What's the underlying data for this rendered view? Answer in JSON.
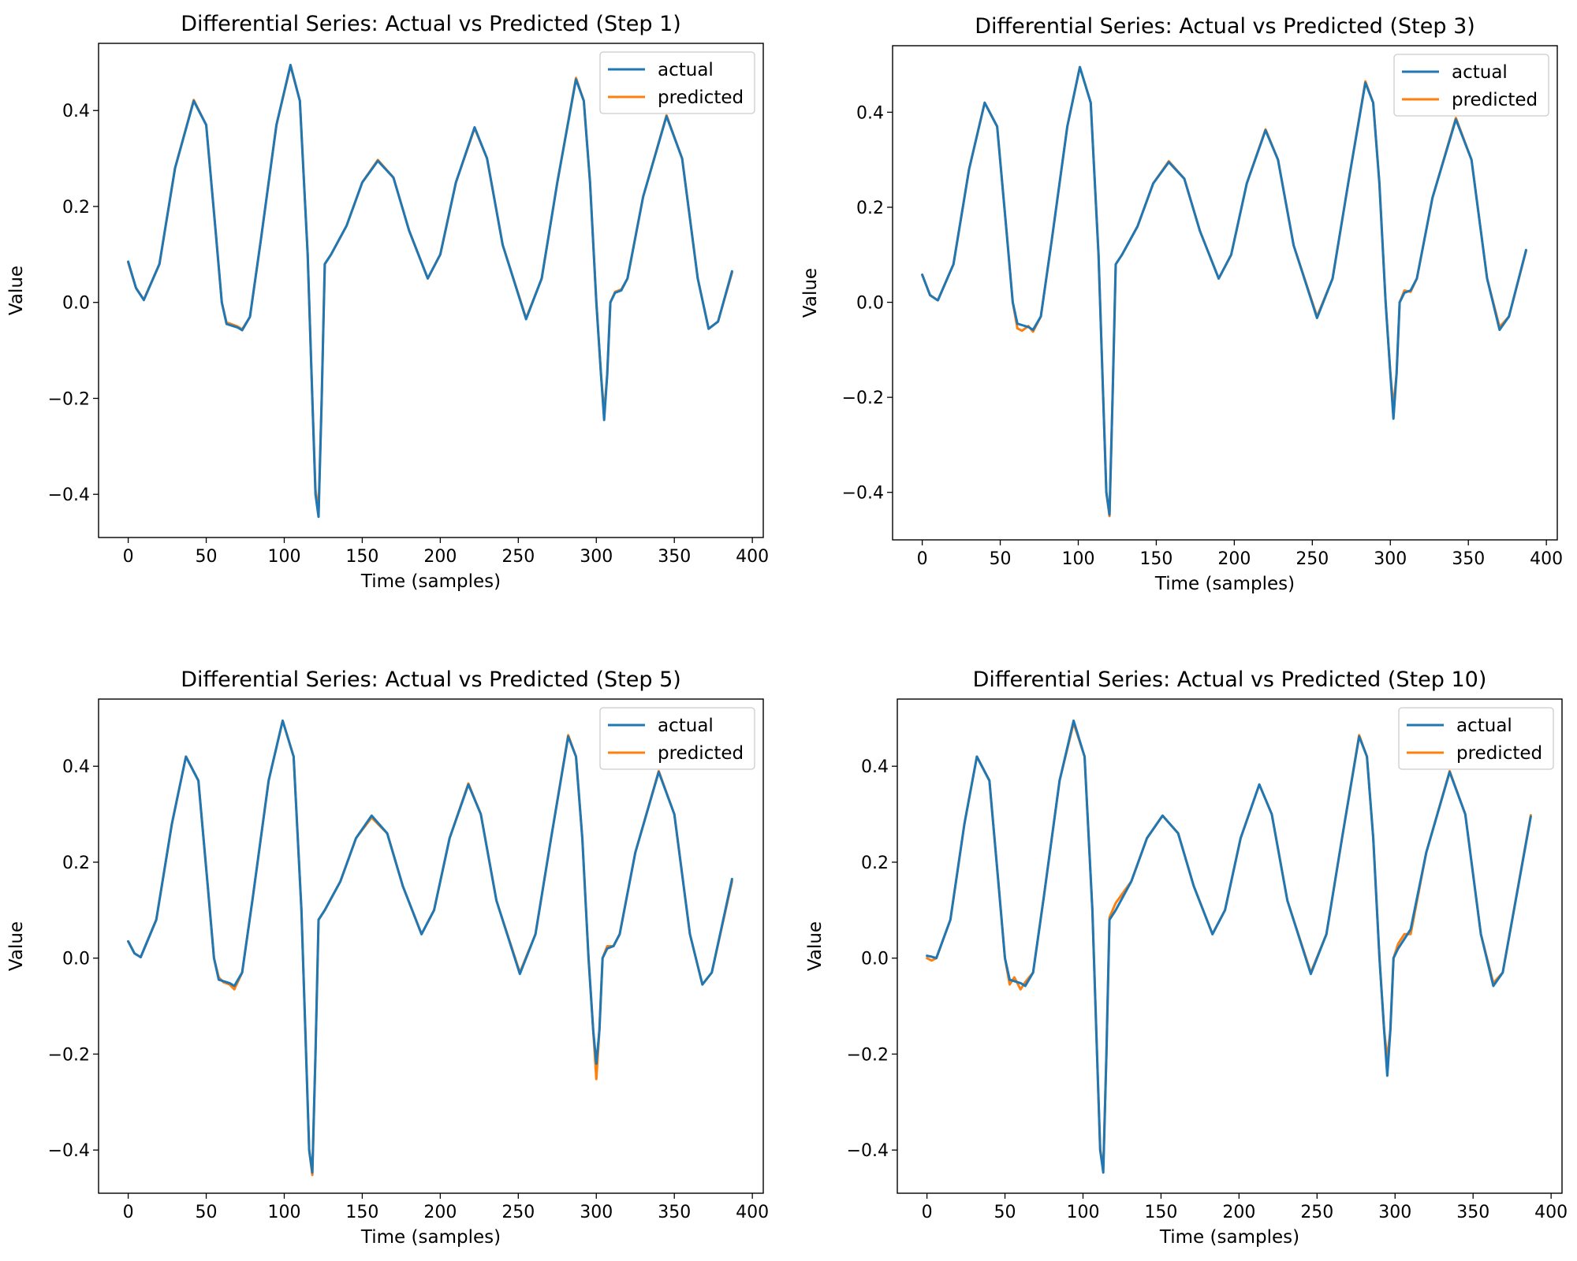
{
  "chart_data": [
    {
      "type": "line",
      "title": "Differential Series: Actual vs Predicted (Step 1)",
      "xlabel": "Time (samples)",
      "ylabel": "Value",
      "xlim": [
        -19,
        407
      ],
      "ylim": [
        -0.49,
        0.54
      ],
      "xticks": [
        0,
        50,
        100,
        150,
        200,
        250,
        300,
        350,
        400
      ],
      "yticks": [
        -0.4,
        -0.2,
        0.0,
        0.2,
        0.4
      ],
      "ytick_labels": [
        "−0.4",
        "−0.2",
        "0.0",
        "0.2",
        "0.4"
      ],
      "legend": "upper right",
      "series": [
        {
          "name": "actual",
          "color": "#1f77b4",
          "x": [
            0,
            5,
            10,
            20,
            30,
            42,
            50,
            56,
            60,
            63,
            66,
            70,
            73,
            78,
            85,
            95,
            104,
            110,
            115,
            118,
            120,
            122,
            124,
            126,
            130,
            140,
            150,
            160,
            170,
            180,
            192,
            200,
            210,
            222,
            230,
            240,
            255,
            265,
            275,
            287,
            292,
            296,
            300,
            303,
            305,
            307,
            309,
            312,
            316,
            320,
            330,
            345,
            355,
            365,
            372,
            378,
            387
          ],
          "y": [
            0.085,
            0.03,
            0.005,
            0.08,
            0.28,
            0.42,
            0.37,
            0.15,
            0.0,
            -0.045,
            -0.048,
            -0.052,
            -0.058,
            -0.03,
            0.13,
            0.37,
            0.495,
            0.42,
            0.1,
            -0.2,
            -0.4,
            -0.447,
            -0.2,
            0.08,
            0.1,
            0.16,
            0.25,
            0.295,
            0.26,
            0.15,
            0.05,
            0.1,
            0.25,
            0.365,
            0.3,
            0.12,
            -0.035,
            0.05,
            0.25,
            0.465,
            0.42,
            0.25,
            0.0,
            -0.15,
            -0.245,
            -0.15,
            0.0,
            0.02,
            0.025,
            0.05,
            0.22,
            0.388,
            0.3,
            0.05,
            -0.055,
            -0.04,
            0.065
          ]
        },
        {
          "name": "predicted",
          "color": "#ff7f0e",
          "x": [
            0,
            5,
            10,
            20,
            30,
            42,
            50,
            56,
            60,
            63,
            66,
            70,
            73,
            78,
            85,
            95,
            104,
            110,
            115,
            118,
            120,
            122,
            124,
            126,
            130,
            140,
            150,
            160,
            170,
            180,
            192,
            200,
            210,
            222,
            230,
            240,
            255,
            265,
            275,
            287,
            292,
            296,
            300,
            303,
            305,
            307,
            309,
            312,
            316,
            320,
            330,
            345,
            355,
            365,
            372,
            378,
            387
          ],
          "y": [
            0.083,
            0.03,
            0.006,
            0.08,
            0.28,
            0.422,
            0.37,
            0.15,
            0.0,
            -0.042,
            -0.045,
            -0.05,
            -0.056,
            -0.03,
            0.13,
            0.37,
            0.493,
            0.42,
            0.1,
            -0.2,
            -0.39,
            -0.435,
            -0.2,
            0.08,
            0.1,
            0.16,
            0.25,
            0.297,
            0.26,
            0.15,
            0.05,
            0.1,
            0.25,
            0.363,
            0.3,
            0.12,
            -0.033,
            0.05,
            0.25,
            0.468,
            0.42,
            0.25,
            0.0,
            -0.15,
            -0.23,
            -0.15,
            0.0,
            0.022,
            0.027,
            0.05,
            0.22,
            0.39,
            0.3,
            0.05,
            -0.055,
            -0.04,
            0.062
          ]
        }
      ]
    },
    {
      "type": "line",
      "title": "Differential Series: Actual vs Predicted (Step 3)",
      "xlabel": "Time (samples)",
      "ylabel": "Value",
      "xlim": [
        -19,
        407
      ],
      "ylim": [
        -0.5,
        0.54
      ],
      "xticks": [
        0,
        50,
        100,
        150,
        200,
        250,
        300,
        350,
        400
      ],
      "yticks": [
        -0.4,
        -0.2,
        0.0,
        0.2,
        0.4
      ],
      "ytick_labels": [
        "−0.4",
        "−0.2",
        "0.0",
        "0.2",
        "0.4"
      ],
      "legend": "upper right",
      "series": [
        {
          "name": "actual",
          "color": "#1f77b4",
          "x": [
            0,
            5,
            10,
            20,
            30,
            40,
            48,
            54,
            58,
            61,
            64,
            68,
            71,
            76,
            83,
            93,
            101,
            108,
            113,
            116,
            118,
            120,
            122,
            124,
            128,
            138,
            148,
            158,
            168,
            178,
            190,
            198,
            208,
            220,
            228,
            238,
            253,
            263,
            273,
            284,
            289,
            293,
            297,
            300,
            302,
            304,
            306,
            309,
            313,
            317,
            327,
            342,
            352,
            362,
            370,
            376,
            387
          ],
          "y": [
            0.058,
            0.015,
            0.004,
            0.08,
            0.28,
            0.42,
            0.37,
            0.15,
            0.0,
            -0.045,
            -0.048,
            -0.052,
            -0.058,
            -0.03,
            0.13,
            0.37,
            0.495,
            0.42,
            0.1,
            -0.2,
            -0.4,
            -0.447,
            -0.2,
            0.08,
            0.1,
            0.16,
            0.25,
            0.295,
            0.26,
            0.15,
            0.05,
            0.1,
            0.25,
            0.362,
            0.3,
            0.12,
            -0.033,
            0.05,
            0.25,
            0.462,
            0.42,
            0.25,
            0.0,
            -0.15,
            -0.245,
            -0.15,
            0.0,
            0.02,
            0.025,
            0.05,
            0.22,
            0.385,
            0.3,
            0.05,
            -0.058,
            -0.03,
            0.11
          ]
        },
        {
          "name": "predicted",
          "color": "#ff7f0e",
          "x": [
            0,
            5,
            10,
            20,
            30,
            40,
            48,
            54,
            58,
            61,
            64,
            68,
            71,
            76,
            83,
            93,
            101,
            108,
            113,
            116,
            118,
            120,
            122,
            124,
            128,
            138,
            148,
            158,
            168,
            178,
            190,
            198,
            208,
            220,
            228,
            238,
            253,
            263,
            273,
            284,
            289,
            293,
            297,
            300,
            302,
            304,
            306,
            309,
            313,
            317,
            327,
            342,
            352,
            362,
            370,
            376,
            387
          ],
          "y": [
            0.058,
            0.015,
            0.004,
            0.08,
            0.28,
            0.42,
            0.37,
            0.15,
            0.0,
            -0.055,
            -0.06,
            -0.05,
            -0.062,
            -0.03,
            0.13,
            0.37,
            0.495,
            0.42,
            0.1,
            -0.2,
            -0.4,
            -0.45,
            -0.2,
            0.08,
            0.1,
            0.16,
            0.25,
            0.297,
            0.26,
            0.15,
            0.05,
            0.1,
            0.25,
            0.364,
            0.3,
            0.12,
            -0.03,
            0.05,
            0.25,
            0.465,
            0.42,
            0.25,
            0.0,
            -0.15,
            -0.22,
            -0.15,
            0.0,
            0.025,
            0.022,
            0.05,
            0.22,
            0.388,
            0.3,
            0.05,
            -0.052,
            -0.03,
            0.108
          ]
        }
      ]
    },
    {
      "type": "line",
      "title": "Differential Series: Actual vs Predicted (Step 5)",
      "xlabel": "Time (samples)",
      "ylabel": "Value",
      "xlim": [
        -19,
        407
      ],
      "ylim": [
        -0.49,
        0.54
      ],
      "xticks": [
        0,
        50,
        100,
        150,
        200,
        250,
        300,
        350,
        400
      ],
      "yticks": [
        -0.4,
        -0.2,
        0.0,
        0.2,
        0.4
      ],
      "ytick_labels": [
        "−0.4",
        "−0.2",
        "0.0",
        "0.2",
        "0.4"
      ],
      "legend": "upper right",
      "series": [
        {
          "name": "actual",
          "color": "#1f77b4",
          "x": [
            0,
            4,
            8,
            18,
            28,
            37,
            45,
            51,
            55,
            58,
            61,
            65,
            68,
            73,
            80,
            90,
            99,
            106,
            111,
            114,
            116,
            118,
            120,
            122,
            126,
            136,
            146,
            156,
            166,
            176,
            188,
            196,
            206,
            218,
            226,
            236,
            251,
            261,
            271,
            282,
            287,
            291,
            295,
            298,
            300,
            302,
            304,
            307,
            311,
            315,
            325,
            340,
            350,
            360,
            368,
            374,
            387
          ],
          "y": [
            0.035,
            0.01,
            0.002,
            0.08,
            0.28,
            0.42,
            0.37,
            0.15,
            0.0,
            -0.045,
            -0.048,
            -0.052,
            -0.058,
            -0.03,
            0.13,
            0.37,
            0.495,
            0.42,
            0.1,
            -0.2,
            -0.4,
            -0.447,
            -0.2,
            0.08,
            0.1,
            0.16,
            0.25,
            0.297,
            0.26,
            0.15,
            0.05,
            0.1,
            0.25,
            0.362,
            0.3,
            0.12,
            -0.033,
            0.05,
            0.25,
            0.462,
            0.42,
            0.25,
            0.0,
            -0.15,
            -0.22,
            -0.15,
            0.0,
            0.02,
            0.025,
            0.05,
            0.22,
            0.388,
            0.3,
            0.05,
            -0.055,
            -0.03,
            0.165
          ]
        },
        {
          "name": "predicted",
          "color": "#ff7f0e",
          "x": [
            0,
            4,
            8,
            18,
            28,
            37,
            45,
            51,
            55,
            58,
            61,
            65,
            68,
            73,
            80,
            90,
            99,
            106,
            111,
            114,
            116,
            118,
            120,
            122,
            126,
            136,
            146,
            156,
            166,
            176,
            188,
            196,
            206,
            218,
            226,
            236,
            251,
            261,
            271,
            282,
            287,
            291,
            295,
            298,
            300,
            302,
            304,
            307,
            311,
            315,
            325,
            340,
            350,
            360,
            368,
            374,
            387
          ],
          "y": [
            0.035,
            0.01,
            0.002,
            0.08,
            0.28,
            0.42,
            0.37,
            0.15,
            0.0,
            -0.04,
            -0.05,
            -0.055,
            -0.065,
            -0.03,
            0.13,
            0.37,
            0.495,
            0.42,
            0.1,
            -0.2,
            -0.4,
            -0.452,
            -0.2,
            0.08,
            0.1,
            0.16,
            0.25,
            0.293,
            0.26,
            0.15,
            0.05,
            0.1,
            0.25,
            0.364,
            0.3,
            0.12,
            -0.03,
            0.05,
            0.25,
            0.465,
            0.42,
            0.25,
            0.0,
            -0.15,
            -0.252,
            -0.15,
            0.0,
            0.025,
            0.025,
            0.05,
            0.22,
            0.39,
            0.3,
            0.05,
            -0.055,
            -0.03,
            0.16
          ]
        }
      ]
    },
    {
      "type": "line",
      "title": "Differential Series: Actual vs Predicted (Step 10)",
      "xlabel": "Time (samples)",
      "ylabel": "Value",
      "xlim": [
        -19,
        407
      ],
      "ylim": [
        -0.49,
        0.54
      ],
      "xticks": [
        0,
        50,
        100,
        150,
        200,
        250,
        300,
        350,
        400
      ],
      "yticks": [
        -0.4,
        -0.2,
        0.0,
        0.2,
        0.4
      ],
      "ytick_labels": [
        "−0.4",
        "−0.2",
        "0.0",
        "0.2",
        "0.4"
      ],
      "legend": "upper right",
      "series": [
        {
          "name": "actual",
          "color": "#1f77b4",
          "x": [
            0,
            3,
            6,
            15,
            24,
            32,
            40,
            46,
            50,
            53,
            56,
            60,
            63,
            68,
            75,
            85,
            94,
            101,
            106,
            109,
            111,
            113,
            115,
            117,
            121,
            131,
            141,
            151,
            161,
            171,
            183,
            191,
            201,
            213,
            221,
            231,
            246,
            256,
            266,
            277,
            282,
            286,
            290,
            293,
            295,
            297,
            299,
            302,
            306,
            310,
            320,
            335,
            345,
            355,
            363,
            369,
            387
          ],
          "y": [
            0.005,
            0.003,
            0.0,
            0.08,
            0.28,
            0.42,
            0.37,
            0.15,
            0.0,
            -0.045,
            -0.048,
            -0.052,
            -0.058,
            -0.03,
            0.13,
            0.37,
            0.495,
            0.42,
            0.1,
            -0.2,
            -0.4,
            -0.447,
            -0.2,
            0.08,
            0.1,
            0.16,
            0.25,
            0.297,
            0.26,
            0.15,
            0.05,
            0.1,
            0.25,
            0.362,
            0.3,
            0.12,
            -0.033,
            0.05,
            0.25,
            0.462,
            0.42,
            0.25,
            0.0,
            -0.15,
            -0.245,
            -0.15,
            0.0,
            0.02,
            0.04,
            0.06,
            0.22,
            0.388,
            0.3,
            0.05,
            -0.058,
            -0.03,
            0.295
          ]
        },
        {
          "name": "predicted",
          "color": "#ff7f0e",
          "x": [
            0,
            3,
            6,
            15,
            24,
            32,
            40,
            46,
            50,
            53,
            56,
            60,
            63,
            68,
            75,
            85,
            94,
            101,
            106,
            109,
            111,
            113,
            115,
            117,
            121,
            131,
            141,
            151,
            161,
            171,
            183,
            191,
            201,
            213,
            221,
            231,
            246,
            256,
            266,
            277,
            282,
            286,
            290,
            293,
            295,
            297,
            299,
            302,
            306,
            310,
            320,
            335,
            345,
            355,
            363,
            369,
            387
          ],
          "y": [
            0.0,
            -0.005,
            0.0,
            0.08,
            0.28,
            0.42,
            0.37,
            0.15,
            0.0,
            -0.055,
            -0.04,
            -0.065,
            -0.05,
            -0.03,
            0.13,
            0.37,
            0.49,
            0.42,
            0.1,
            -0.2,
            -0.4,
            -0.435,
            -0.2,
            0.085,
            0.115,
            0.16,
            0.25,
            0.297,
            0.26,
            0.15,
            0.05,
            0.1,
            0.25,
            0.362,
            0.3,
            0.12,
            -0.03,
            0.05,
            0.25,
            0.465,
            0.42,
            0.25,
            0.0,
            -0.15,
            -0.21,
            -0.15,
            0.0,
            0.03,
            0.05,
            0.05,
            0.22,
            0.39,
            0.3,
            0.05,
            -0.052,
            -0.03,
            0.298
          ]
        }
      ]
    }
  ]
}
